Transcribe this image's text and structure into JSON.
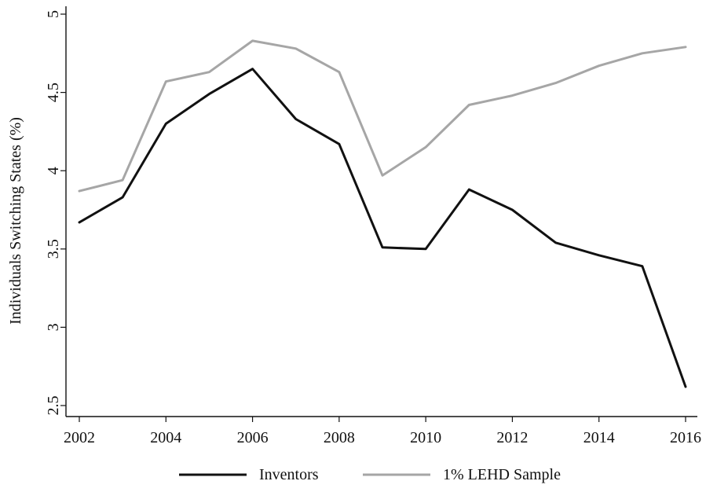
{
  "chart_data": {
    "type": "line",
    "title": "",
    "xlabel": "",
    "ylabel": "Individuals Switching States (%)",
    "x": [
      2002,
      2003,
      2004,
      2005,
      2006,
      2007,
      2008,
      2009,
      2010,
      2011,
      2012,
      2013,
      2014,
      2015,
      2016
    ],
    "xticks": [
      "2002",
      "2004",
      "2006",
      "2008",
      "2010",
      "2012",
      "2014",
      "2016"
    ],
    "xlim": [
      2002,
      2016
    ],
    "yticks": [
      "2.5",
      "3",
      "3.5",
      "4",
      "4.5",
      "5"
    ],
    "ylim": [
      2.5,
      5
    ],
    "grid": false,
    "legend_position": "bottom",
    "series": [
      {
        "name": "Inventors",
        "color": "#111111",
        "values": [
          3.67,
          3.83,
          4.3,
          4.49,
          4.65,
          4.33,
          4.17,
          3.51,
          3.5,
          3.88,
          3.75,
          3.54,
          3.46,
          3.39,
          2.62
        ]
      },
      {
        "name": "1% LEHD Sample",
        "color": "#a6a6a6",
        "values": [
          3.87,
          3.94,
          4.57,
          4.63,
          4.83,
          4.78,
          4.63,
          3.97,
          4.15,
          4.42,
          4.48,
          4.56,
          4.67,
          4.75,
          4.79
        ]
      }
    ]
  }
}
